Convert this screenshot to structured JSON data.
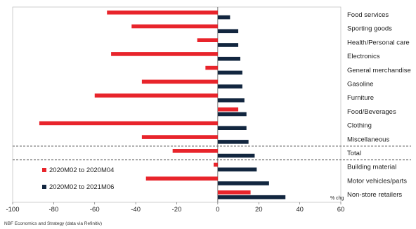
{
  "chart_data": {
    "type": "bar",
    "orientation": "horizontal",
    "categories": [
      "Food services",
      "Sporting goods",
      "Health/Personal care",
      "Electronics",
      "General merchandise",
      "Gasoline",
      "Furniture",
      "Food/Beverages",
      "Clothing",
      "Miscellaneous",
      "Total",
      "Building material",
      "Motor vehicles/parts",
      "Non-store retailers"
    ],
    "series": [
      {
        "name": "2020M02 to 2020M04",
        "color": "#e8242b",
        "values": [
          -54,
          -42,
          -10,
          -52,
          -6,
          -37,
          -60,
          10,
          -87,
          -37,
          -22,
          -2,
          -35,
          16
        ]
      },
      {
        "name": "2020M02 to 2021M06",
        "color": "#12263f",
        "values": [
          6,
          10,
          10,
          11,
          12,
          12,
          13,
          14,
          14,
          15,
          18,
          19,
          25,
          33
        ]
      }
    ],
    "xlim": [
      -100,
      60
    ],
    "xticks": [
      "-100",
      "-80",
      "-60",
      "-40",
      "-20",
      "0",
      "20",
      "40",
      "60"
    ],
    "xlabel": "% chg",
    "legend_position": "bottom-left",
    "separators_after": [
      "Miscellaneous",
      "Total"
    ]
  },
  "footer": {
    "source": "NBF Economics and Strategy (data via Refinitiv)"
  }
}
